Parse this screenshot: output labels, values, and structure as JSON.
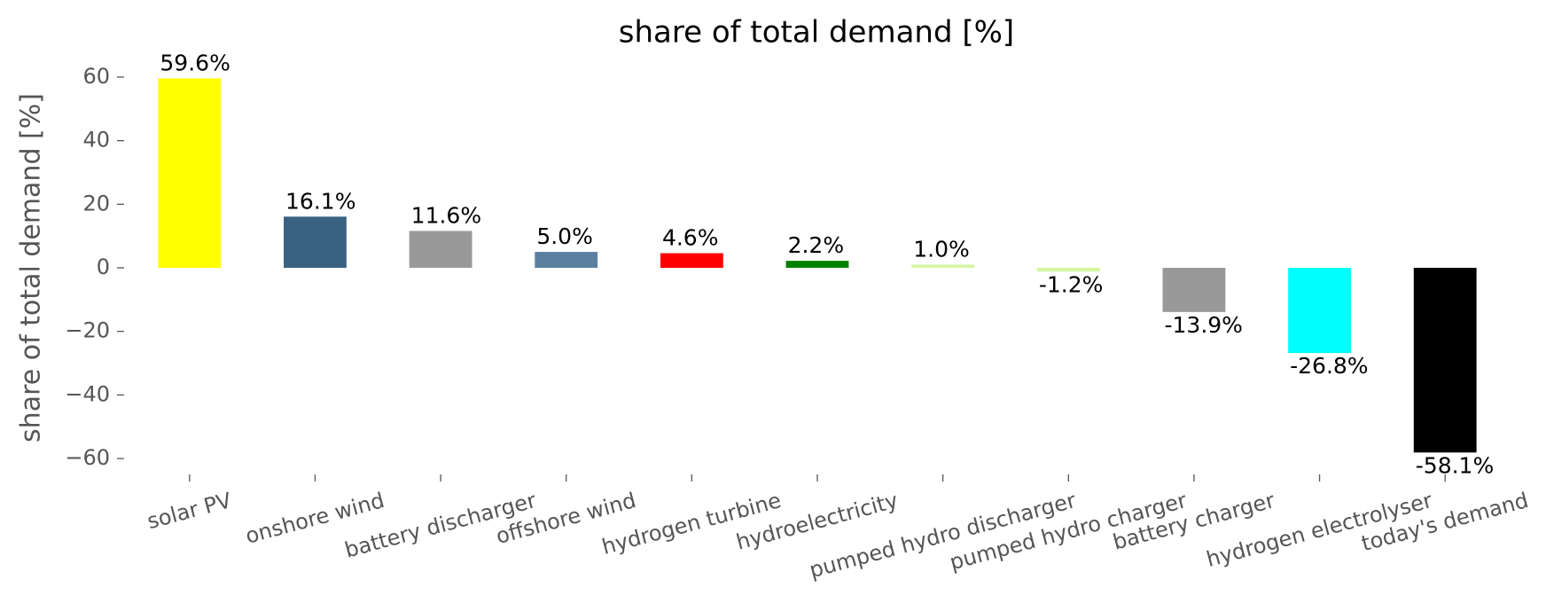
{
  "chart_data": {
    "type": "bar",
    "title": "share of total demand [%]",
    "ylabel": "share of total demand [%]",
    "categories": [
      "solar PV",
      "onshore wind",
      "battery discharger",
      "offshore wind",
      "hydrogen turbine",
      "hydroelectricity",
      "pumped hydro discharger",
      "pumped hydro charger",
      "battery charger",
      "hydrogen electrolyser",
      "today's demand"
    ],
    "values": [
      59.6,
      16.1,
      11.6,
      5.0,
      4.6,
      2.2,
      1.0,
      -1.2,
      -13.9,
      -26.8,
      -58.1
    ],
    "value_labels": [
      "59.6%",
      "16.1%",
      "11.6%",
      "5.0%",
      "4.6%",
      "2.2%",
      "1.0%",
      "-1.2%",
      "-13.9%",
      "-26.8%",
      "-58.1%"
    ],
    "colors": [
      "#ffff00",
      "#3b6182",
      "#999999",
      "#5b7fa0",
      "#ff0000",
      "#008000",
      "#d4f5a2",
      "#d4f5a2",
      "#999999",
      "#00ffff",
      "#000000"
    ],
    "ylim": [
      -65,
      65
    ],
    "yticks": [
      {
        "value": -60,
        "label": "−60"
      },
      {
        "value": -40,
        "label": "−40"
      },
      {
        "value": -20,
        "label": "−20"
      },
      0,
      20,
      40,
      60
    ]
  }
}
